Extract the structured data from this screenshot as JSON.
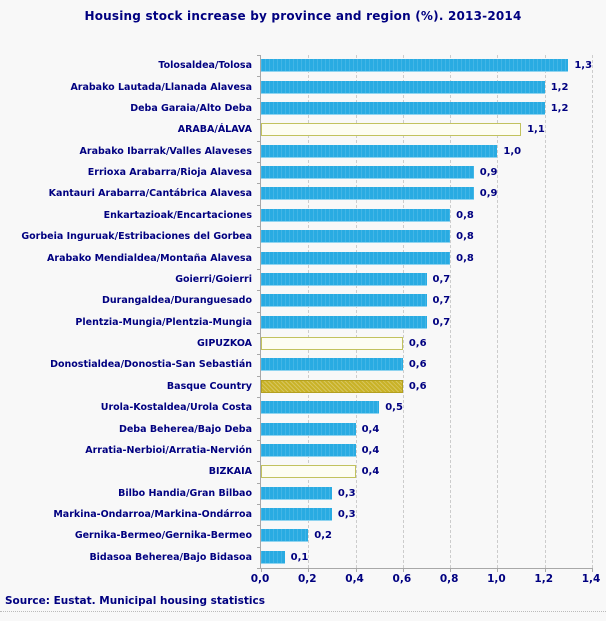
{
  "title": "Housing stock increase by province and region (%). 2013-2014",
  "source": "Source: Eustat. Municipal housing statistics",
  "colors": {
    "text_navy": "#000080",
    "bar_blue": "#29abe2",
    "bar_gold": "#c9b227",
    "province_outline": "#c2c25e",
    "gridline": "#cccccc",
    "background": "#f8f8f8"
  },
  "chart_data": {
    "type": "bar",
    "orientation": "horizontal",
    "title": "Housing stock increase by province and region (%). 2013-2014",
    "xlabel": "",
    "ylabel": "",
    "xlim": [
      0,
      1.4
    ],
    "grid": true,
    "x_tick_labels": [
      "0,0",
      "0,2",
      "0,4",
      "0,6",
      "0,8",
      "1,0",
      "1,2",
      "1,4"
    ],
    "x_tick_values": [
      0.0,
      0.2,
      0.4,
      0.6,
      0.8,
      1.0,
      1.2,
      1.4
    ],
    "decimal_style": "comma",
    "legend": "none",
    "series": [
      {
        "label": "Tolosaldea/Tolosa",
        "value": 1.3,
        "display": "1,3",
        "kind": "district"
      },
      {
        "label": "Arabako Lautada/Llanada Alavesa",
        "value": 1.2,
        "display": "1,2",
        "kind": "district"
      },
      {
        "label": "Deba Garaia/Alto Deba",
        "value": 1.2,
        "display": "1,2",
        "kind": "district"
      },
      {
        "label": "ARABA/ÁLAVA",
        "value": 1.1,
        "display": "1,1",
        "kind": "province"
      },
      {
        "label": "Arabako Ibarrak/Valles Alaveses",
        "value": 1.0,
        "display": "1,0",
        "kind": "district"
      },
      {
        "label": "Errioxa Arabarra/Rioja Alavesa",
        "value": 0.9,
        "display": "0,9",
        "kind": "district"
      },
      {
        "label": "Kantauri Arabarra/Cantábrica Alavesa",
        "value": 0.9,
        "display": "0,9",
        "kind": "district"
      },
      {
        "label": "Enkartazioak/Encartaciones",
        "value": 0.8,
        "display": "0,8",
        "kind": "district"
      },
      {
        "label": "Gorbeia Inguruak/Estribaciones del Gorbea",
        "value": 0.8,
        "display": "0,8",
        "kind": "district"
      },
      {
        "label": "Arabako Mendialdea/Montaña Alavesa",
        "value": 0.8,
        "display": "0,8",
        "kind": "district"
      },
      {
        "label": "Goierri/Goierri",
        "value": 0.7,
        "display": "0,7",
        "kind": "district"
      },
      {
        "label": "Durangaldea/Duranguesado",
        "value": 0.7,
        "display": "0,7",
        "kind": "district"
      },
      {
        "label": "Plentzia-Mungia/Plentzia-Mungia",
        "value": 0.7,
        "display": "0,7",
        "kind": "district"
      },
      {
        "label": "GIPUZKOA",
        "value": 0.6,
        "display": "0,6",
        "kind": "province"
      },
      {
        "label": "Donostialdea/Donostia-San Sebastián",
        "value": 0.6,
        "display": "0,6",
        "kind": "district"
      },
      {
        "label": "Basque Country",
        "value": 0.6,
        "display": "0,6",
        "kind": "country"
      },
      {
        "label": "Urola-Kostaldea/Urola Costa",
        "value": 0.5,
        "display": "0,5",
        "kind": "district"
      },
      {
        "label": "Deba Beherea/Bajo Deba",
        "value": 0.4,
        "display": "0,4",
        "kind": "district"
      },
      {
        "label": "Arratia-Nerbioi/Arratia-Nervión",
        "value": 0.4,
        "display": "0,4",
        "kind": "district"
      },
      {
        "label": "BIZKAIA",
        "value": 0.4,
        "display": "0,4",
        "kind": "province"
      },
      {
        "label": "Bilbo Handia/Gran Bilbao",
        "value": 0.3,
        "display": "0,3",
        "kind": "district"
      },
      {
        "label": "Markina-Ondarroa/Markina-Ondárroa",
        "value": 0.3,
        "display": "0,3",
        "kind": "district"
      },
      {
        "label": "Gernika-Bermeo/Gernika-Bermeo",
        "value": 0.2,
        "display": "0,2",
        "kind": "district"
      },
      {
        "label": "Bidasoa Beherea/Bajo Bidasoa",
        "value": 0.1,
        "display": "0,1",
        "kind": "district"
      }
    ]
  }
}
